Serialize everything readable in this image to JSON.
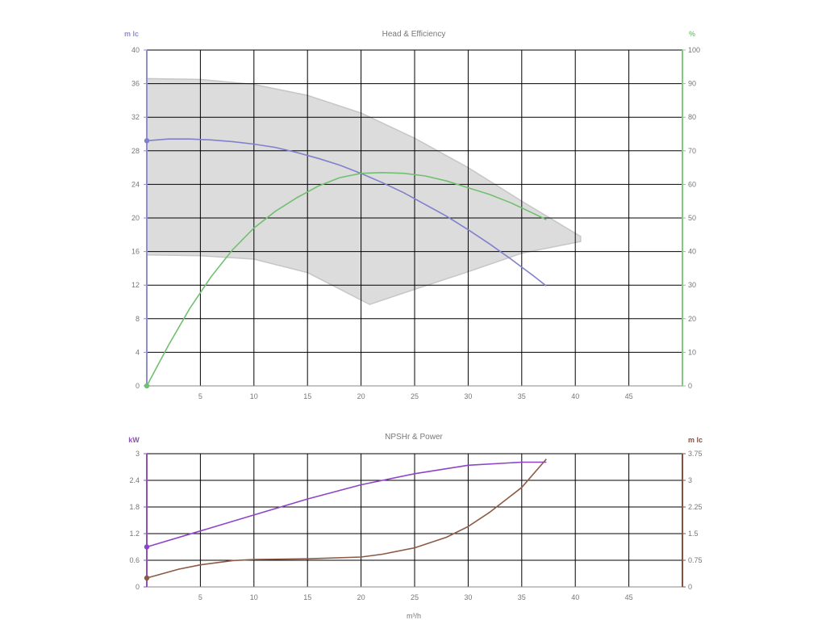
{
  "chart_data": [
    {
      "type": "line",
      "title": "Head & Efficiency",
      "xlabel": "",
      "xlim": [
        0,
        50
      ],
      "x_ticks": [
        5,
        10,
        15,
        20,
        25,
        30,
        35,
        40,
        45
      ],
      "ylabel_left": "m lc",
      "ylim_left": [
        0,
        40
      ],
      "y_ticks_left": [
        0,
        4,
        8,
        12,
        16,
        20,
        24,
        28,
        32,
        36,
        40
      ],
      "ylabel_right": "%",
      "ylim_right": [
        0,
        100
      ],
      "y_ticks_right": [
        0,
        10,
        20,
        30,
        40,
        50,
        60,
        70,
        80,
        90,
        100
      ],
      "grid": true,
      "colors": {
        "left_axis": "#8f8fd0",
        "right_axis": "#82c882",
        "head": "#8080cc",
        "efficiency": "#70c070",
        "envelope_fill": "#dcdcdc",
        "envelope_stroke": "#c6c6c6",
        "grid": "#000000"
      },
      "series": [
        {
          "key": "head",
          "axis": "left",
          "x": [
            0,
            2,
            4,
            6,
            8,
            10,
            12,
            14,
            16,
            18,
            20,
            22,
            24,
            26,
            28,
            30,
            32,
            34,
            36,
            37.3
          ],
          "values": [
            29.2,
            29.4,
            29.4,
            29.3,
            29.1,
            28.8,
            28.4,
            27.8,
            27.1,
            26.3,
            25.3,
            24.2,
            23.0,
            21.6,
            20.2,
            18.6,
            16.9,
            15.1,
            13.2,
            11.9
          ]
        },
        {
          "key": "efficiency",
          "axis": "right",
          "x": [
            0,
            2,
            4,
            6,
            8,
            10,
            12,
            14,
            16,
            18,
            20,
            22,
            24,
            26,
            28,
            30,
            32,
            34,
            36,
            37.3
          ],
          "values": [
            0,
            12,
            23,
            32.5,
            40.5,
            47,
            52,
            56,
            59.5,
            62,
            63.3,
            63.5,
            63.3,
            62.5,
            61,
            59,
            57,
            54.5,
            51.5,
            49.5
          ]
        },
        {
          "key": "envelope_upper",
          "axis": "left",
          "x": [
            0,
            5,
            10,
            15,
            20,
            25,
            30,
            35,
            40.5
          ],
          "values": [
            36.6,
            36.5,
            35.9,
            34.6,
            32.5,
            29.5,
            26,
            22,
            17.8
          ]
        },
        {
          "key": "envelope_lower",
          "axis": "left",
          "x": [
            40.5,
            35,
            30,
            25,
            20.8,
            15,
            10,
            5,
            0
          ],
          "values": [
            17.2,
            15.8,
            13.6,
            11.5,
            9.7,
            13.5,
            15.1,
            15.5,
            15.6
          ]
        }
      ]
    },
    {
      "type": "line",
      "title": "NPSHr & Power",
      "xlabel": "m³/h",
      "xlim": [
        0,
        50
      ],
      "x_ticks": [
        5,
        10,
        15,
        20,
        25,
        30,
        35,
        40,
        45
      ],
      "ylabel_left": "kW",
      "ylim_left": [
        0,
        3
      ],
      "y_ticks_left": [
        "0",
        "0.6",
        "1.2",
        "1.8",
        "2.4",
        "3"
      ],
      "ylabel_right": "m lc",
      "ylim_right": [
        0,
        3.75
      ],
      "y_ticks_right": [
        "0",
        "0.75",
        "1.5",
        "2.25",
        "3",
        "3.75"
      ],
      "grid": true,
      "colors": {
        "left_axis": "#9050b8",
        "right_axis": "#8a4e3c",
        "power": "#8e44c8",
        "npshr": "#8b5a44",
        "grid": "#000000"
      },
      "series": [
        {
          "key": "power",
          "axis": "left",
          "x": [
            0,
            5,
            10,
            15,
            20,
            25,
            30,
            35,
            37.3
          ],
          "values": [
            0.9,
            1.26,
            1.62,
            1.98,
            2.3,
            2.55,
            2.74,
            2.81,
            2.81
          ]
        },
        {
          "key": "npshr",
          "axis": "right",
          "x": [
            0,
            3,
            5,
            8,
            10,
            15,
            20,
            22,
            25,
            28,
            30,
            32,
            35,
            37.3
          ],
          "values": [
            0.25,
            0.5,
            0.62,
            0.74,
            0.77,
            0.79,
            0.84,
            0.92,
            1.1,
            1.4,
            1.7,
            2.1,
            2.8,
            3.6
          ]
        }
      ]
    }
  ]
}
